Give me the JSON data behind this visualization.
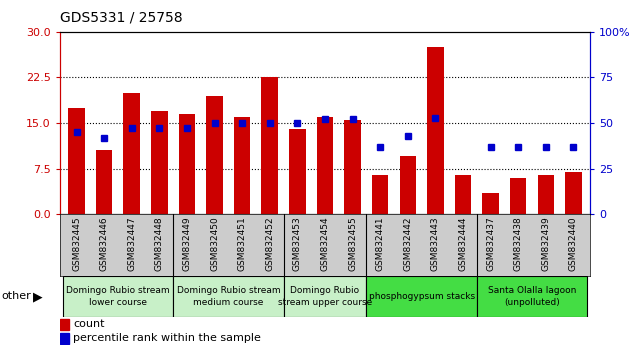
{
  "title": "GDS5331 / 25758",
  "samples": [
    "GSM832445",
    "GSM832446",
    "GSM832447",
    "GSM832448",
    "GSM832449",
    "GSM832450",
    "GSM832451",
    "GSM832452",
    "GSM832453",
    "GSM832454",
    "GSM832455",
    "GSM832441",
    "GSM832442",
    "GSM832443",
    "GSM832444",
    "GSM832437",
    "GSM832438",
    "GSM832439",
    "GSM832440"
  ],
  "counts": [
    17.5,
    10.5,
    20.0,
    17.0,
    16.5,
    19.5,
    16.0,
    22.5,
    14.0,
    16.0,
    15.5,
    6.5,
    9.5,
    27.5,
    6.5,
    3.5,
    6.0,
    6.5,
    7.0
  ],
  "percentiles": [
    45,
    42,
    47,
    47,
    47,
    50,
    50,
    50,
    50,
    52,
    52,
    37,
    43,
    53,
    null,
    37,
    37,
    37,
    37
  ],
  "groups": [
    {
      "label": "Domingo Rubio stream\nlower course",
      "start": 0,
      "end": 4,
      "color": "#c8f0c8"
    },
    {
      "label": "Domingo Rubio stream\nmedium course",
      "start": 4,
      "end": 8,
      "color": "#c8f0c8"
    },
    {
      "label": "Domingo Rubio\nstream upper course",
      "start": 8,
      "end": 11,
      "color": "#c8f0c8"
    },
    {
      "label": "phosphogypsum stacks",
      "start": 11,
      "end": 15,
      "color": "#44dd44"
    },
    {
      "label": "Santa Olalla lagoon\n(unpolluted)",
      "start": 15,
      "end": 19,
      "color": "#44dd44"
    }
  ],
  "ylim_left": [
    0,
    30
  ],
  "ylim_right": [
    0,
    100
  ],
  "yticks_left": [
    0,
    7.5,
    15,
    22.5,
    30
  ],
  "yticks_right": [
    0,
    25,
    50,
    75,
    100
  ],
  "bar_color": "#cc0000",
  "dot_color": "#0000cc",
  "label_bg_color": "#cccccc",
  "plot_bg": "#ffffff",
  "title_color": "#000000",
  "left_axis_color": "#cc0000",
  "right_axis_color": "#0000cc"
}
